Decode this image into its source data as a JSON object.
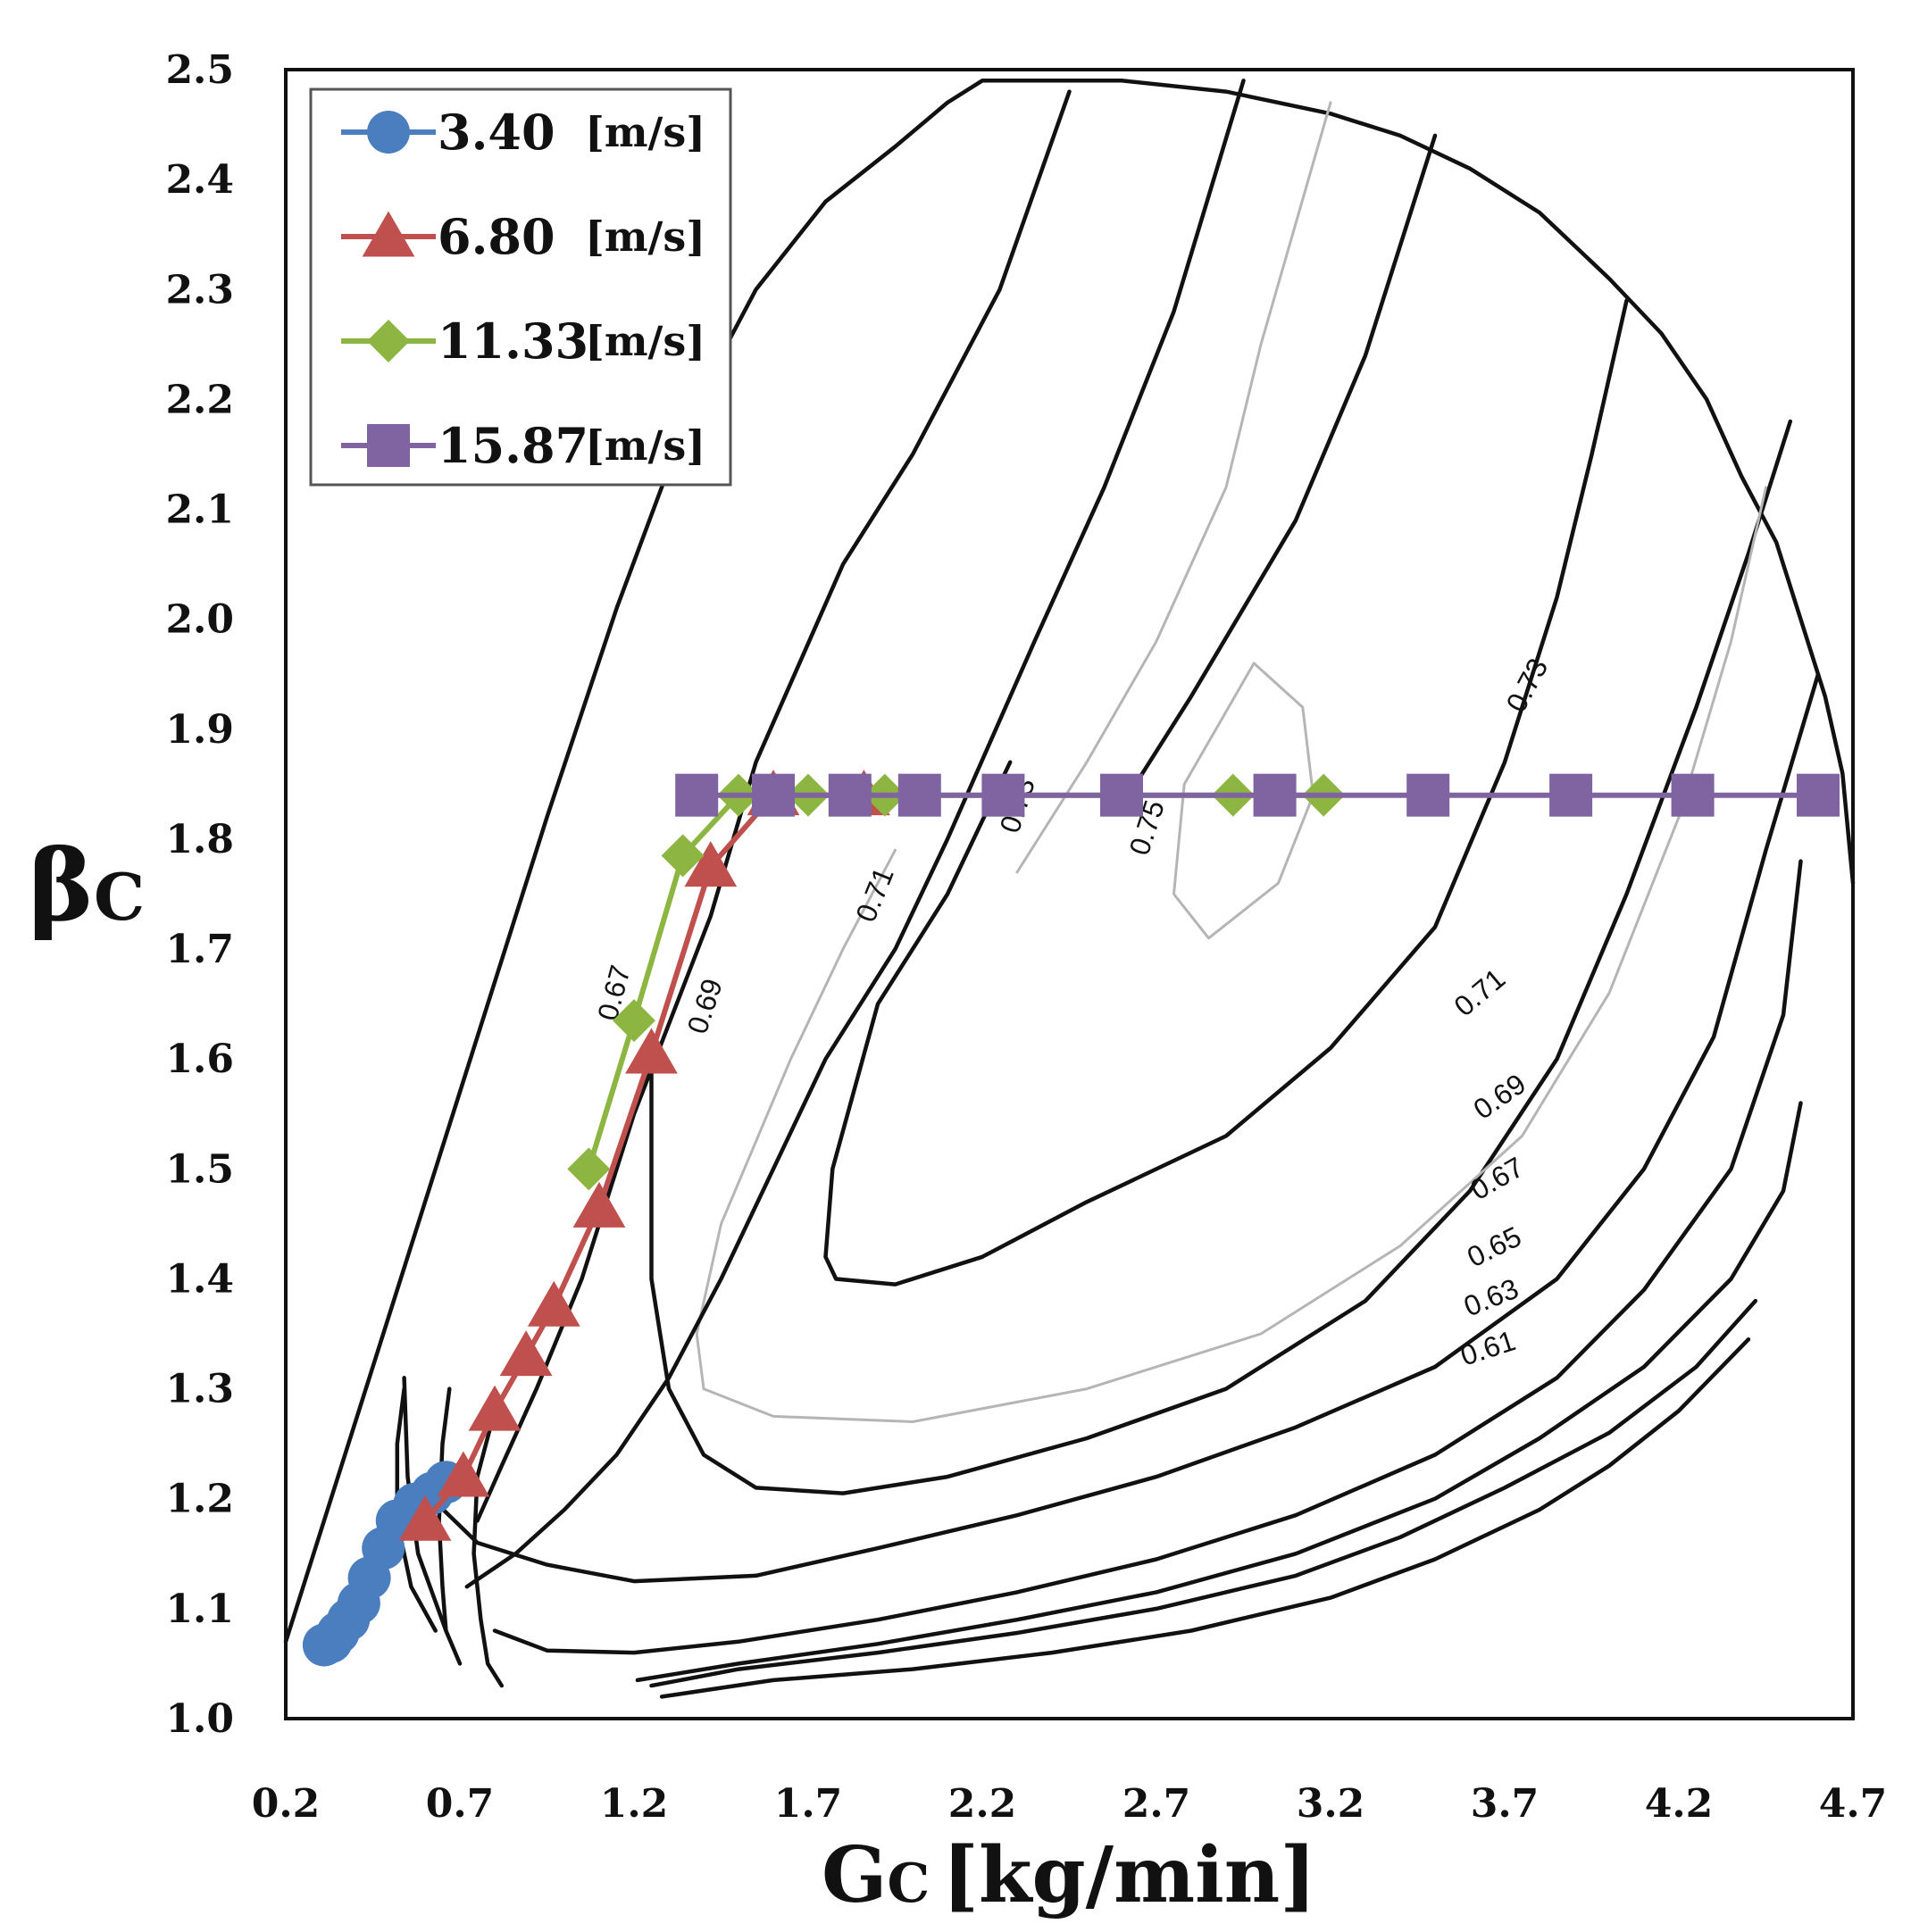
{
  "chart_data": {
    "type": "line",
    "title": "",
    "xlabel_main": "G",
    "xlabel_sub": "C",
    "xlabel_unit": "[kg/min]",
    "ylabel_main": "β",
    "ylabel_sub": "C",
    "xlim": [
      0.2,
      4.7
    ],
    "ylim": [
      1.0,
      2.5
    ],
    "xticks": [
      0.2,
      0.7,
      1.2,
      1.7,
      2.2,
      2.7,
      3.2,
      3.7,
      4.2,
      4.7
    ],
    "yticks": [
      1.0,
      1.1,
      1.2,
      1.3,
      1.4,
      1.5,
      1.6,
      1.7,
      1.8,
      1.9,
      2.0,
      2.1,
      2.2,
      2.3,
      2.4,
      2.5
    ],
    "grid": false,
    "legend_position": "top-left",
    "series": [
      {
        "name": "3.40",
        "unit": "[m/s]",
        "color": "#4a7ebf",
        "marker": "circle",
        "x": [
          0.31,
          0.33,
          0.35,
          0.38,
          0.41,
          0.44,
          0.48,
          0.52,
          0.57,
          0.62,
          0.66
        ],
        "y": [
          1.067,
          1.07,
          1.078,
          1.09,
          1.105,
          1.128,
          1.155,
          1.18,
          1.195,
          1.205,
          1.215
        ]
      },
      {
        "name": "6.80",
        "unit": "[m/s]",
        "color": "#c0504d",
        "marker": "triangle",
        "x": [
          0.6,
          0.71,
          0.8,
          0.89,
          0.97,
          1.1,
          1.25,
          1.42,
          1.6,
          1.86
        ],
        "y": [
          1.18,
          1.22,
          1.28,
          1.33,
          1.375,
          1.465,
          1.605,
          1.775,
          1.84,
          1.84
        ]
      },
      {
        "name": "11.33",
        "unit": "[m/s]",
        "color": "#8db542",
        "marker": "diamond",
        "x": [
          1.07,
          1.2,
          1.34,
          1.5,
          1.7,
          1.92,
          2.92,
          3.18
        ],
        "y": [
          1.5,
          1.635,
          1.785,
          1.84,
          1.84,
          1.84,
          1.84,
          1.84
        ]
      },
      {
        "name": "15.87",
        "unit": "[m/s]",
        "color": "#8064a2",
        "marker": "square",
        "x": [
          1.38,
          1.6,
          1.82,
          2.02,
          2.26,
          2.6,
          3.04,
          3.48,
          3.89,
          4.24,
          4.6
        ],
        "y": [
          1.84,
          1.84,
          1.84,
          1.84,
          1.84,
          1.84,
          1.84,
          1.84,
          1.84,
          1.84,
          1.84
        ]
      }
    ],
    "contour_labels": [
      "0.75",
      "0.73",
      "0.73",
      "0.71",
      "0.71",
      "0.69",
      "0.69",
      "0.67",
      "0.67",
      "0.65",
      "0.63",
      "0.61"
    ],
    "contours": [
      {
        "level": "boundary",
        "style": "black",
        "x": [
          0.17,
          0.35,
          0.55,
          0.75,
          0.95,
          1.15,
          1.35,
          1.55,
          1.75,
          1.95,
          2.1,
          2.2,
          2.35,
          2.6,
          2.9,
          3.2,
          3.4,
          3.6,
          3.8,
          4.0,
          4.15,
          4.28,
          4.38,
          4.48,
          4.55,
          4.62,
          4.67,
          4.7
        ],
        "y": [
          1.07,
          1.22,
          1.42,
          1.62,
          1.82,
          2.01,
          2.18,
          2.3,
          2.38,
          2.43,
          2.47,
          2.49,
          2.49,
          2.49,
          2.48,
          2.46,
          2.44,
          2.41,
          2.37,
          2.31,
          2.26,
          2.2,
          2.13,
          2.07,
          2.0,
          1.93,
          1.86,
          1.76
        ]
      },
      {
        "level": "",
        "style": "black",
        "x": [
          0.66,
          0.58,
          0.55,
          0.54
        ],
        "y": [
          1.08,
          1.15,
          1.22,
          1.31
        ]
      },
      {
        "level": "",
        "style": "black",
        "x": [
          0.7,
          0.66,
          0.65,
          0.64,
          0.65,
          0.67
        ],
        "y": [
          1.05,
          1.08,
          1.12,
          1.18,
          1.25,
          1.3
        ]
      },
      {
        "level": "",
        "style": "black",
        "x": [
          0.82,
          0.78,
          0.76,
          0.74,
          0.75,
          0.8
        ],
        "y": [
          1.03,
          1.05,
          1.09,
          1.15,
          1.22,
          1.28
        ]
      },
      {
        "level": "",
        "style": "black",
        "x": [
          0.63,
          0.56,
          0.52,
          0.52,
          0.54
        ],
        "y": [
          1.08,
          1.12,
          1.18,
          1.25,
          1.3
        ]
      },
      {
        "level": "0.61",
        "style": "black",
        "x": [
          1.28,
          1.6,
          2.0,
          2.4,
          2.8,
          3.2,
          3.5,
          3.8,
          4.0,
          4.2,
          4.4
        ],
        "y": [
          1.02,
          1.035,
          1.045,
          1.06,
          1.08,
          1.11,
          1.145,
          1.19,
          1.23,
          1.28,
          1.345
        ]
      },
      {
        "level": "0.63",
        "style": "black",
        "x": [
          1.25,
          1.5,
          1.9,
          2.3,
          2.7,
          3.1,
          3.4,
          3.7,
          4.0,
          4.25,
          4.42
        ],
        "y": [
          1.03,
          1.045,
          1.06,
          1.078,
          1.1,
          1.13,
          1.165,
          1.21,
          1.26,
          1.32,
          1.38
        ]
      },
      {
        "level": "0.65",
        "style": "black",
        "x": [
          1.21,
          1.5,
          1.9,
          2.3,
          2.7,
          3.1,
          3.5,
          3.8,
          4.1,
          4.35,
          4.5,
          4.55
        ],
        "y": [
          1.035,
          1.05,
          1.068,
          1.09,
          1.115,
          1.15,
          1.2,
          1.255,
          1.32,
          1.4,
          1.48,
          1.56
        ]
      },
      {
        "level": "0.67",
        "style": "black",
        "x": [
          0.8,
          0.95,
          1.2,
          1.5,
          1.9,
          2.3,
          2.7,
          3.1,
          3.5,
          3.85,
          4.1,
          4.35,
          4.5,
          4.55
        ],
        "y": [
          1.08,
          1.062,
          1.06,
          1.07,
          1.09,
          1.115,
          1.145,
          1.185,
          1.24,
          1.31,
          1.39,
          1.5,
          1.64,
          1.78
        ]
      },
      {
        "level": "0.69",
        "style": "black",
        "x": [
          0.62,
          0.75,
          0.95,
          1.2,
          1.55,
          1.9,
          2.3,
          2.7,
          3.1,
          3.5,
          3.85,
          4.1,
          4.3,
          4.45,
          4.6
        ],
        "y": [
          1.2,
          1.16,
          1.14,
          1.125,
          1.13,
          1.155,
          1.185,
          1.22,
          1.265,
          1.32,
          1.4,
          1.5,
          1.62,
          1.79,
          1.95
        ]
      },
      {
        "level": "0.71",
        "style": "black",
        "x": [
          1.25,
          1.25,
          1.3,
          1.4,
          1.55,
          1.8,
          2.1,
          2.5,
          2.9,
          3.3,
          3.6,
          3.85,
          4.05,
          4.25,
          4.4,
          4.52
        ],
        "y": [
          1.6,
          1.4,
          1.3,
          1.24,
          1.21,
          1.205,
          1.22,
          1.255,
          1.3,
          1.38,
          1.48,
          1.6,
          1.75,
          1.92,
          2.06,
          2.18
        ]
      },
      {
        "level": "0.73",
        "style": "black",
        "x": [
          2.28,
          2.1,
          1.9,
          1.77,
          1.75,
          1.78,
          1.95,
          2.2,
          2.5,
          2.9,
          3.2,
          3.5,
          3.7,
          3.85,
          3.95,
          4.05
        ],
        "y": [
          1.87,
          1.75,
          1.65,
          1.5,
          1.42,
          1.4,
          1.395,
          1.42,
          1.47,
          1.53,
          1.61,
          1.72,
          1.87,
          2.02,
          2.15,
          2.29
        ]
      },
      {
        "level": "0.75",
        "style": "gray",
        "x": [
          2.98,
          2.78,
          2.75,
          2.85,
          3.05,
          3.15,
          3.12,
          2.98
        ],
        "y": [
          1.96,
          1.85,
          1.75,
          1.71,
          1.76,
          1.84,
          1.92,
          1.96
        ]
      },
      {
        "level": "",
        "style": "gray",
        "x": [
          1.95,
          1.8,
          1.65,
          1.45,
          1.38,
          1.4,
          1.6,
          2.0,
          2.5,
          3.0,
          3.4,
          3.75,
          4.0,
          4.2,
          4.35,
          4.45
        ],
        "y": [
          1.79,
          1.7,
          1.6,
          1.45,
          1.35,
          1.3,
          1.275,
          1.27,
          1.3,
          1.35,
          1.43,
          1.53,
          1.66,
          1.82,
          1.98,
          2.12
        ]
      },
      {
        "level": "",
        "style": "black",
        "x": [
          2.45,
          2.25,
          2.0,
          1.8,
          1.55,
          1.42,
          1.2,
          1.05,
          0.92,
          0.82,
          0.75
        ],
        "y": [
          2.48,
          2.3,
          2.15,
          2.05,
          1.87,
          1.73,
          1.55,
          1.4,
          1.3,
          1.23,
          1.18
        ]
      },
      {
        "level": "",
        "style": "black",
        "x": [
          2.95,
          2.75,
          2.55,
          2.35,
          2.1,
          1.95,
          1.75,
          1.6,
          1.45,
          1.3,
          1.15,
          1.0,
          0.86,
          0.72
        ],
        "y": [
          2.49,
          2.28,
          2.12,
          1.98,
          1.8,
          1.7,
          1.6,
          1.5,
          1.4,
          1.31,
          1.24,
          1.19,
          1.15,
          1.12
        ]
      },
      {
        "level": "",
        "style": "black",
        "x": [
          3.5,
          3.3,
          3.1,
          2.8,
          2.6
        ],
        "y": [
          2.44,
          2.24,
          2.09,
          1.93,
          1.83
        ]
      },
      {
        "level": "",
        "style": "gray",
        "x": [
          3.2,
          3.0,
          2.9,
          2.7,
          2.5,
          2.3
        ],
        "y": [
          2.47,
          2.25,
          2.12,
          1.98,
          1.87,
          1.77
        ]
      }
    ]
  }
}
